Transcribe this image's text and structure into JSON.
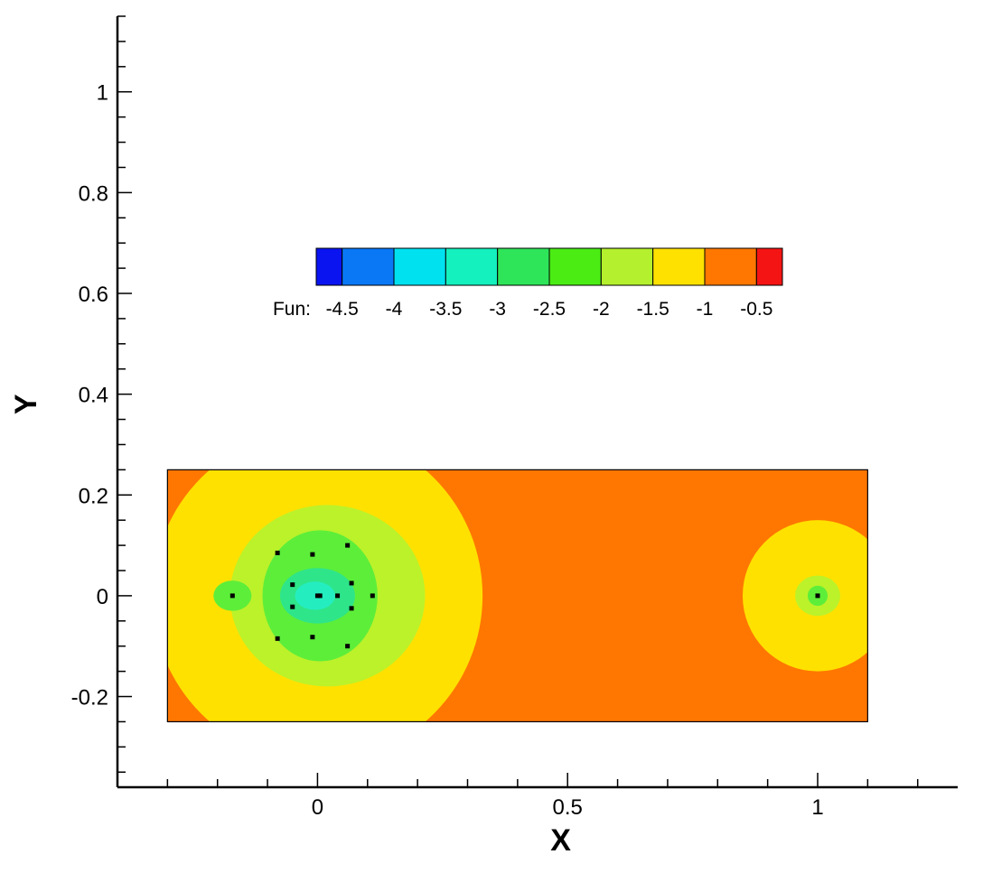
{
  "chart_data": {
    "type": "heatmap",
    "title": "",
    "xlabel": "X",
    "ylabel": "Y",
    "xlim": [
      -0.4,
      1.28
    ],
    "ylim": [
      -0.38,
      1.15
    ],
    "x_ticks": [
      {
        "value": 0,
        "label": "0"
      },
      {
        "value": 0.5,
        "label": "0.5"
      },
      {
        "value": 1,
        "label": "1"
      }
    ],
    "x_minor_step": 0.1,
    "y_ticks": [
      {
        "value": -0.2,
        "label": "-0.2"
      },
      {
        "value": 0,
        "label": "0"
      },
      {
        "value": 0.2,
        "label": "0.2"
      },
      {
        "value": 0.4,
        "label": "0.4"
      },
      {
        "value": 0.6,
        "label": "0.6"
      },
      {
        "value": 0.8,
        "label": "0.8"
      },
      {
        "value": 1,
        "label": "1"
      }
    ],
    "y_minor_step": 0.05,
    "domain": {
      "xmin": -0.3,
      "xmax": 1.1,
      "ymin": -0.25,
      "ymax": 0.25
    },
    "background_level_color": "#FF7700",
    "contour_regions": [
      {
        "shape": "circle",
        "cx": 0.0,
        "cy": 0.0,
        "r": 0.33,
        "color": "#FFE100"
      },
      {
        "shape": "circle",
        "cx": 1.0,
        "cy": 0.0,
        "r": 0.15,
        "color": "#FFE100"
      },
      {
        "shape": "ellipse",
        "cx": 0.02,
        "cy": 0.0,
        "rx": 0.195,
        "ry": 0.18,
        "color": "#BBF22A"
      },
      {
        "shape": "ellipse",
        "cx": 0.005,
        "cy": 0.0,
        "rx": 0.115,
        "ry": 0.13,
        "color": "#5DEE3A"
      },
      {
        "shape": "ellipse",
        "cx": 0.0,
        "cy": 0.0,
        "rx": 0.075,
        "ry": 0.055,
        "color": "#2EE58A"
      },
      {
        "shape": "ellipse",
        "cx": -0.005,
        "cy": 0.0,
        "rx": 0.04,
        "ry": 0.028,
        "color": "#24EEC0"
      },
      {
        "shape": "ellipse",
        "cx": -0.17,
        "cy": 0.0,
        "rx": 0.038,
        "ry": 0.03,
        "color": "#5DEE3A"
      },
      {
        "shape": "ellipse",
        "cx": 1.0,
        "cy": 0.0,
        "rx": 0.045,
        "ry": 0.04,
        "color": "#BBF22A"
      },
      {
        "shape": "ellipse",
        "cx": 1.0,
        "cy": 0.0,
        "rx": 0.02,
        "ry": 0.02,
        "color": "#5DEE3A"
      }
    ],
    "points": [
      [
        -0.17,
        0.0
      ],
      [
        -0.08,
        0.085
      ],
      [
        -0.08,
        -0.085
      ],
      [
        -0.05,
        0.022
      ],
      [
        -0.05,
        -0.022
      ],
      [
        -0.01,
        0.082
      ],
      [
        -0.01,
        -0.082
      ],
      [
        0.0,
        0.0
      ],
      [
        0.005,
        0.0
      ],
      [
        0.04,
        0.0
      ],
      [
        0.06,
        0.1
      ],
      [
        0.06,
        -0.1
      ],
      [
        0.068,
        0.025
      ],
      [
        0.068,
        -0.025
      ],
      [
        0.11,
        0.0
      ],
      [
        1.0,
        0.0
      ]
    ],
    "colorbar": {
      "label": "Fun:",
      "levels": [
        "-4.5",
        "-4",
        "-3.5",
        "-3",
        "-2.5",
        "-2",
        "-1.5",
        "-1",
        "-0.5"
      ],
      "colors": [
        "#0A14F0",
        "#0A78F5",
        "#00E1F0",
        "#14F0BE",
        "#2EE55A",
        "#4BEC14",
        "#B4F02D",
        "#FFE100",
        "#FF7700",
        "#F51414"
      ]
    }
  }
}
